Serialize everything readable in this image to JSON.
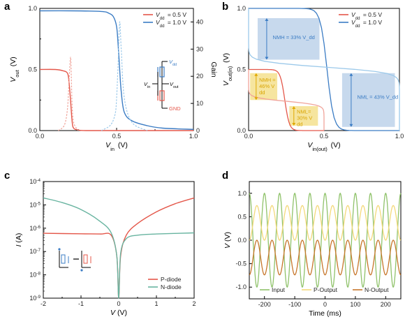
{
  "panels": {
    "a": {
      "letter": "a"
    },
    "b": {
      "letter": "b"
    },
    "c": {
      "letter": "c"
    },
    "d": {
      "letter": "d"
    }
  },
  "colors": {
    "red": "#e4574a",
    "blue": "#3b7cc4",
    "lightred": "#f0a49a",
    "lightblue": "#9cc9ea",
    "green": "#68b4a0",
    "inputGreen": "#8fc26a",
    "yellow": "#f3d97a",
    "orange": "#c7762b"
  },
  "chart_data": [
    {
      "panel": "a",
      "type": "line",
      "xlabel": "V_in (V)",
      "ylabel_left": "V_out (V)",
      "ylabel_right": "Gain",
      "xlim": [
        0,
        1.0
      ],
      "ylim": [
        0,
        1.0
      ],
      "y2lim": [
        0,
        45
      ],
      "x_ticks": [
        "0.0",
        "0.5",
        "1.0"
      ],
      "y_ticks": [
        "0.0",
        "0.5",
        "1.0"
      ],
      "y2_ticks": [
        "0",
        "10",
        "20",
        "30",
        "40"
      ],
      "legend": [
        "V_dd = 0.5 V",
        "V_dd = 1.0 V"
      ],
      "legend_position": "top-right",
      "series": [
        {
          "name": "V_dd = 0.5 V",
          "axis": "left",
          "x": [
            0,
            0.1,
            0.15,
            0.18,
            0.19,
            0.2,
            0.21,
            0.22,
            0.25,
            0.3,
            0.5,
            1.0
          ],
          "y": [
            0.5,
            0.5,
            0.49,
            0.47,
            0.4,
            0.25,
            0.08,
            0.02,
            0.005,
            0,
            0,
            0
          ]
        },
        {
          "name": "V_dd = 1.0 V",
          "axis": "left",
          "x": [
            0,
            0.2,
            0.4,
            0.45,
            0.48,
            0.5,
            0.51,
            0.52,
            0.53,
            0.55,
            0.6,
            0.7,
            0.8,
            1.0
          ],
          "y": [
            0.98,
            0.98,
            0.975,
            0.96,
            0.93,
            0.85,
            0.7,
            0.5,
            0.32,
            0.15,
            0.08,
            0.04,
            0.02,
            0.01
          ]
        },
        {
          "name": "Gain 0.5 V",
          "axis": "right",
          "dashed": true,
          "x": [
            0.12,
            0.16,
            0.18,
            0.19,
            0.2,
            0.205,
            0.21,
            0.22,
            0.25
          ],
          "y": [
            0,
            2,
            8,
            18,
            27,
            20,
            10,
            3,
            0
          ]
        },
        {
          "name": "Gain 1.0 V",
          "axis": "right",
          "dashed": true,
          "x": [
            0.4,
            0.46,
            0.49,
            0.5,
            0.51,
            0.52,
            0.53,
            0.55,
            0.6,
            0.7
          ],
          "y": [
            0,
            2,
            6,
            12,
            25,
            40,
            30,
            12,
            3,
            0
          ]
        }
      ],
      "circuit_labels": {
        "vdd": "V_dd",
        "vin": "V_in",
        "vout": "V_out",
        "gnd": "GND"
      }
    },
    {
      "panel": "b",
      "type": "line",
      "xlabel": "V_in(out) (V)",
      "ylabel": "V_out(in) (V)",
      "xlim": [
        0,
        1.0
      ],
      "ylim": [
        0,
        1.0
      ],
      "x_ticks": [
        "0.0",
        "0.5",
        "1.0"
      ],
      "y_ticks": [
        "0.0",
        "0.5",
        "1.0"
      ],
      "legend": [
        "V_dd = 0.5 V",
        "V_dd = 1.0 V"
      ],
      "legend_position": "top-right",
      "annotations": [
        "NMH = 33% V_dd",
        "NML = 43% V_dd",
        "NMH = 46% V_dd",
        "NML = 30% V_dd"
      ]
    },
    {
      "panel": "c",
      "type": "line",
      "xlabel": "V (V)",
      "ylabel": "I (A)",
      "xlim": [
        -2,
        2
      ],
      "ylim_log": [
        -9,
        -4
      ],
      "x_ticks": [
        "-2",
        "-1",
        "0",
        "1",
        "2"
      ],
      "y_ticks": [
        "10^-9",
        "10^-8",
        "10^-7",
        "10^-6",
        "10^-5",
        "10^-4"
      ],
      "legend": [
        "P-diode",
        "N-diode"
      ],
      "legend_position": "bottom-right",
      "series": [
        {
          "name": "P-diode",
          "x": [
            -2,
            -1,
            -0.5,
            -0.2,
            -0.05,
            0,
            0.05,
            0.2,
            0.5,
            1,
            1.5,
            2
          ],
          "log10y": [
            -6.22,
            -6.24,
            -6.25,
            -6.3,
            -7.2,
            -9,
            -7.2,
            -6.3,
            -5.8,
            -5.3,
            -4.95,
            -4.7
          ]
        },
        {
          "name": "N-diode",
          "x": [
            -2,
            -1.5,
            -1,
            -0.5,
            -0.2,
            -0.05,
            0,
            0.05,
            0.2,
            0.5,
            1,
            2
          ],
          "log10y": [
            -4.7,
            -4.9,
            -5.2,
            -5.7,
            -6.2,
            -7.2,
            -9,
            -7.1,
            -6.45,
            -6.3,
            -6.25,
            -6.2
          ]
        }
      ]
    },
    {
      "panel": "d",
      "type": "line",
      "xlabel": "Time (ms)",
      "ylabel": "V (V)",
      "xlim": [
        -250,
        250
      ],
      "ylim": [
        -1.0,
        1.0
      ],
      "x_ticks": [
        "-200",
        "-100",
        "0",
        "100",
        "200"
      ],
      "y_ticks": [
        "-1.0",
        "-0.5",
        "0.0",
        "0.5",
        "1.0"
      ],
      "legend": [
        "Input",
        "P-Output",
        "N-Output"
      ],
      "legend_position": "bottom",
      "period_ms": 50,
      "series": [
        {
          "name": "Input",
          "amplitude": 1.0,
          "offset": 0,
          "phase": 0
        },
        {
          "name": "P-Output",
          "amplitude": 0.37,
          "offset": 0.37,
          "phase": 3.14159
        },
        {
          "name": "N-Output",
          "amplitude": 0.37,
          "offset": -0.37,
          "phase": 3.14159
        }
      ]
    }
  ]
}
